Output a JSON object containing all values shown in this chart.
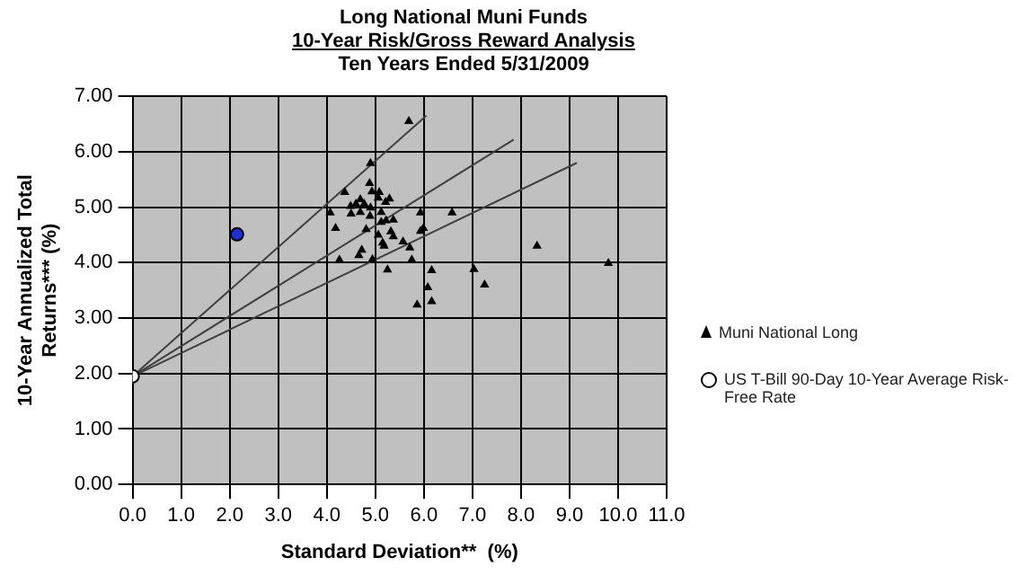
{
  "chart_data": {
    "type": "scatter",
    "title": "Long National Muni Funds",
    "subtitle": "10-Year Risk/Gross Reward Analysis",
    "annotations": [
      "Ten Years Ended 5/31/2009"
    ],
    "xlabel": "Standard Deviation**  (%)",
    "ylabel": "10-Year Annualized Total Returns*** (%)",
    "xlim": [
      0,
      11
    ],
    "xticks": [
      {
        "value": 0,
        "label": "0.0"
      },
      {
        "value": 1,
        "label": "1.0"
      },
      {
        "value": 2,
        "label": "2.0"
      },
      {
        "value": 3,
        "label": "3.0"
      },
      {
        "value": 4,
        "label": "4.0"
      },
      {
        "value": 5,
        "label": "5.0"
      },
      {
        "value": 6,
        "label": "6.0"
      },
      {
        "value": 7,
        "label": "7.0"
      },
      {
        "value": 8,
        "label": "8.0"
      },
      {
        "value": 9,
        "label": "9.0"
      },
      {
        "value": 10,
        "label": "10.0"
      },
      {
        "value": 11,
        "label": "11.0"
      }
    ],
    "ylim": [
      0,
      7
    ],
    "yticks": [
      {
        "value": 0,
        "label": "0.00"
      },
      {
        "value": 1,
        "label": "1.00"
      },
      {
        "value": 2,
        "label": "2.00"
      },
      {
        "value": 3,
        "label": "3.00"
      },
      {
        "value": 4,
        "label": "4.00"
      },
      {
        "value": 5,
        "label": "5.00"
      },
      {
        "value": 6,
        "label": "6.00"
      },
      {
        "value": 7,
        "label": "7.00"
      }
    ],
    "grid": true,
    "legend": "right",
    "series": [
      {
        "name": "Muni National Long",
        "color": "#000000",
        "marker": "triangle",
        "x": [
          5.69,
          4.9,
          4.37,
          4.88,
          4.93,
          5.08,
          5.06,
          5.29,
          5.21,
          4.07,
          4.49,
          4.6,
          4.69,
          4.77,
          4.5,
          4.69,
          4.9,
          4.89,
          5.12,
          5.12,
          5.22,
          5.37,
          4.18,
          4.81,
          5.06,
          5.32,
          5.37,
          5.15,
          5.18,
          5.57,
          5.71,
          4.72,
          4.66,
          4.26,
          4.94,
          5.75,
          5.25,
          5.93,
          6.58,
          5.99,
          5.93,
          6.16,
          6.08,
          6.16,
          5.86,
          7.03,
          7.25,
          8.33,
          9.8
        ],
        "values": [
          6.55,
          5.79,
          5.27,
          5.43,
          5.28,
          5.27,
          5.17,
          5.15,
          5.09,
          4.9,
          5.02,
          5.06,
          5.14,
          5.06,
          4.88,
          4.91,
          4.99,
          4.84,
          4.91,
          4.73,
          4.76,
          4.77,
          4.62,
          4.6,
          4.5,
          4.56,
          4.47,
          4.36,
          4.3,
          4.38,
          4.27,
          4.23,
          4.13,
          4.05,
          4.06,
          4.05,
          3.87,
          4.9,
          4.9,
          4.62,
          4.57,
          3.86,
          3.55,
          3.3,
          3.24,
          3.88,
          3.6,
          4.3,
          3.99
        ]
      },
      {
        "color": "#1f2fd0",
        "marker": "circle",
        "x": [
          2.15
        ],
        "values": [
          4.51
        ]
      },
      {
        "name": "US T-Bill 90-Day 10-Year Average Risk-Free Rate",
        "color": "#ffffff",
        "marker": "circle",
        "x": [
          0
        ],
        "values": [
          1.95
        ]
      },
      {
        "type": "line",
        "color": "#404040",
        "marker": "none",
        "x": [
          0,
          6.05
        ],
        "values": [
          1.95,
          6.65
        ]
      },
      {
        "type": "line",
        "color": "#404040",
        "marker": "none",
        "x": [
          0,
          7.85
        ],
        "values": [
          1.95,
          6.22
        ]
      },
      {
        "type": "line",
        "color": "#404040",
        "marker": "none",
        "x": [
          0,
          9.15
        ],
        "values": [
          1.95,
          5.8
        ]
      }
    ]
  }
}
